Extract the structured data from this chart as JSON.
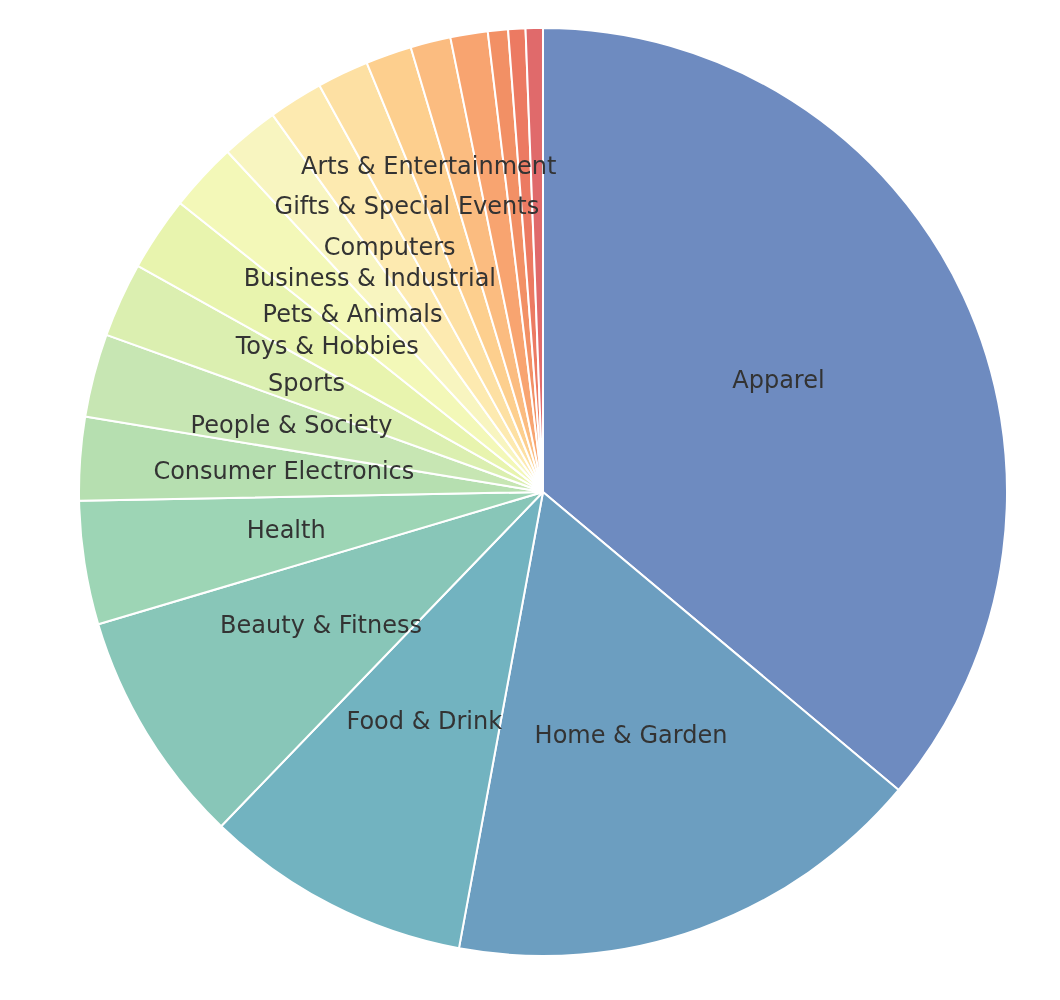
{
  "chart_data": {
    "type": "pie",
    "categories": [
      "Apparel",
      "Home & Garden",
      "Food & Drink",
      "Beauty & Fitness",
      "Health",
      "Consumer Electronics",
      "People & Society",
      "Sports",
      "Toys & Hobbies",
      "Pets & Animals",
      "Business & Industrial",
      "Computers",
      "Gifts & Special Events",
      "Arts & Entertainment",
      null,
      null,
      null,
      null,
      null
    ],
    "values": [
      36.1,
      16.8,
      9.3,
      8.2,
      4.3,
      2.9,
      2.9,
      2.6,
      2.6,
      2.4,
      2.0,
      1.9,
      1.8,
      1.6,
      1.4,
      1.3,
      0.7,
      0.6,
      0.6
    ],
    "colors": [
      "#6e8bc0",
      "#6c9ec0",
      "#72b3c0",
      "#88c6b8",
      "#9dd5b5",
      "#b6dfb0",
      "#c7e6b3",
      "#dbefb0",
      "#e8f4ae",
      "#f3f8b8",
      "#f8f5c0",
      "#fdeab0",
      "#fde0a3",
      "#fdcf8e",
      "#fbbc80",
      "#f8a470",
      "#f29065",
      "#ec7a62",
      "#e06a6b"
    ],
    "legend": false
  }
}
